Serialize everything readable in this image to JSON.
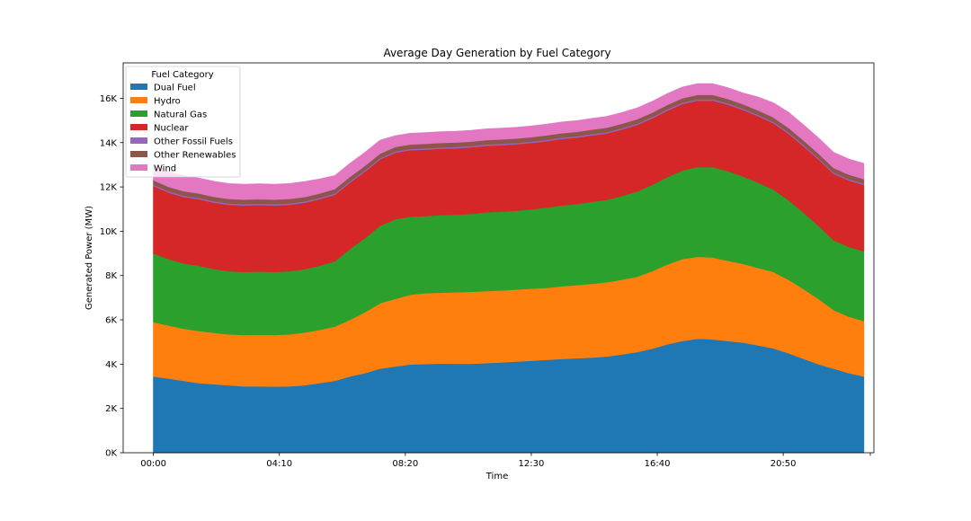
{
  "chart_data": {
    "type": "area",
    "stacked": true,
    "title": "Average Day Generation by Fuel Category",
    "xlabel": "Time",
    "ylabel": "Generated Power (MW)",
    "legend_title": "Fuel Category",
    "legend_position": "upper-left",
    "grid": false,
    "x_tick_labels": [
      "00:00",
      "04:10",
      "08:20",
      "12:30",
      "16:40",
      "20:50"
    ],
    "x_tick_minutes": [
      0,
      250,
      500,
      750,
      1000,
      1250
    ],
    "xlim_minutes": [
      -60,
      1430
    ],
    "y_tick_values": [
      0,
      2000,
      4000,
      6000,
      8000,
      10000,
      12000,
      14000,
      16000
    ],
    "y_tick_labels": [
      "0K",
      "2K",
      "4K",
      "6K",
      "8K",
      "10K",
      "12K",
      "14K",
      "16K"
    ],
    "ylim": [
      0,
      17600
    ],
    "x_minutes": [
      0,
      30,
      60,
      90,
      120,
      150,
      180,
      210,
      240,
      270,
      300,
      330,
      360,
      390,
      420,
      450,
      480,
      510,
      540,
      570,
      600,
      630,
      660,
      690,
      720,
      750,
      780,
      810,
      840,
      870,
      900,
      930,
      960,
      990,
      1020,
      1050,
      1080,
      1110,
      1140,
      1170,
      1200,
      1230,
      1260,
      1290,
      1320,
      1350,
      1380,
      1410
    ],
    "series": [
      {
        "name": "Dual Fuel",
        "color": "#1f77b4",
        "values": [
          3450,
          3350,
          3250,
          3150,
          3100,
          3050,
          3000,
          3000,
          2990,
          3000,
          3050,
          3150,
          3250,
          3450,
          3600,
          3800,
          3900,
          3990,
          4010,
          4030,
          4020,
          4020,
          4050,
          4080,
          4120,
          4160,
          4200,
          4240,
          4270,
          4300,
          4350,
          4440,
          4550,
          4700,
          4900,
          5050,
          5150,
          5120,
          5050,
          4980,
          4850,
          4720,
          4500,
          4250,
          4000,
          3800,
          3600,
          3450
        ]
      },
      {
        "name": "Hydro",
        "color": "#ff7f0e",
        "values": [
          2450,
          2400,
          2350,
          2350,
          2320,
          2300,
          2320,
          2330,
          2330,
          2350,
          2380,
          2400,
          2450,
          2550,
          2750,
          2950,
          3050,
          3150,
          3200,
          3200,
          3230,
          3250,
          3250,
          3250,
          3250,
          3250,
          3250,
          3280,
          3300,
          3330,
          3350,
          3380,
          3400,
          3500,
          3600,
          3700,
          3700,
          3700,
          3620,
          3550,
          3500,
          3450,
          3320,
          3150,
          2950,
          2650,
          2550,
          2500
        ]
      },
      {
        "name": "Natural Gas",
        "color": "#2ca02c",
        "values": [
          3100,
          3000,
          2950,
          2950,
          2880,
          2850,
          2850,
          2860,
          2850,
          2850,
          2860,
          2900,
          2950,
          3200,
          3350,
          3500,
          3600,
          3520,
          3480,
          3500,
          3500,
          3520,
          3560,
          3560,
          3560,
          3580,
          3620,
          3650,
          3660,
          3700,
          3720,
          3780,
          3850,
          3900,
          3950,
          4000,
          4050,
          4080,
          4050,
          3950,
          3850,
          3720,
          3600,
          3450,
          3300,
          3150,
          3150,
          3150
        ]
      },
      {
        "name": "Nuclear",
        "color": "#d62728",
        "values": [
          3050,
          3000,
          3000,
          3000,
          3000,
          3000,
          3000,
          3000,
          3000,
          3000,
          3000,
          3000,
          3000,
          3000,
          3000,
          3000,
          3000,
          3000,
          3000,
          3000,
          3000,
          3000,
          3000,
          3000,
          3000,
          3000,
          3000,
          3000,
          3000,
          3000,
          3000,
          3000,
          3000,
          3000,
          3000,
          3000,
          3000,
          3000,
          3000,
          3000,
          3000,
          3000,
          3000,
          3000,
          3000,
          3000,
          3000,
          3000
        ]
      },
      {
        "name": "Other Fossil Fuels",
        "color": "#9467bd",
        "values": [
          60,
          60,
          60,
          60,
          60,
          60,
          60,
          60,
          60,
          60,
          60,
          60,
          60,
          60,
          60,
          60,
          60,
          60,
          60,
          60,
          60,
          60,
          60,
          60,
          60,
          60,
          60,
          60,
          60,
          60,
          60,
          60,
          60,
          60,
          60,
          60,
          60,
          60,
          60,
          60,
          60,
          60,
          60,
          60,
          60,
          60,
          60,
          60
        ]
      },
      {
        "name": "Other Renewables",
        "color": "#8c564b",
        "values": [
          200,
          200,
          200,
          200,
          200,
          200,
          200,
          200,
          200,
          200,
          200,
          200,
          200,
          200,
          200,
          200,
          200,
          200,
          200,
          200,
          200,
          200,
          200,
          200,
          200,
          200,
          200,
          200,
          200,
          200,
          200,
          200,
          200,
          200,
          200,
          200,
          200,
          200,
          200,
          200,
          200,
          200,
          200,
          200,
          200,
          200,
          200,
          200
        ]
      },
      {
        "name": "Wind",
        "color": "#e377c2",
        "values": [
          690,
          690,
          690,
          690,
          690,
          690,
          690,
          690,
          690,
          690,
          690,
          650,
          600,
          600,
          600,
          600,
          500,
          500,
          500,
          500,
          500,
          500,
          500,
          500,
          500,
          500,
          500,
          500,
          500,
          500,
          500,
          500,
          500,
          500,
          500,
          500,
          500,
          500,
          500,
          500,
          600,
          650,
          700,
          700,
          700,
          700,
          700,
          700
        ]
      }
    ]
  }
}
